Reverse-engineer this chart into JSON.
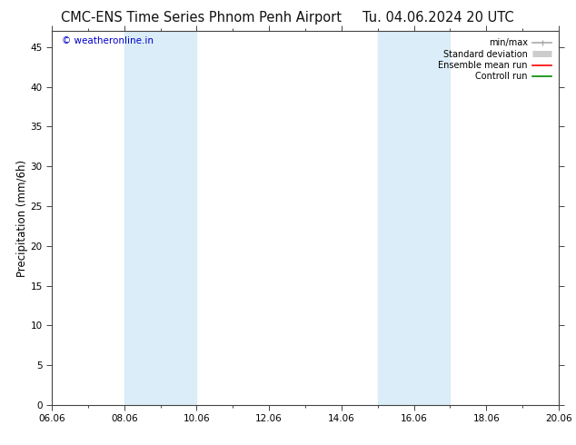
{
  "title_left": "CMC-ENS Time Series Phnom Penh Airport",
  "title_right": "Tu. 04.06.2024 20 UTC",
  "ylabel": "Precipitation (mm/6h)",
  "watermark": "© weatheronline.in",
  "ylim": [
    0,
    47
  ],
  "yticks": [
    0,
    5,
    10,
    15,
    20,
    25,
    30,
    35,
    40,
    45
  ],
  "xtick_labels": [
    "06.06",
    "08.06",
    "10.06",
    "12.06",
    "14.06",
    "16.06",
    "18.06",
    "20.06"
  ],
  "xtick_positions": [
    0,
    2,
    4,
    6,
    8,
    10,
    12,
    14
  ],
  "shade_bands": [
    {
      "xstart": 2,
      "xend": 4,
      "color": "#daedf8"
    },
    {
      "xstart": 9,
      "xend": 11,
      "color": "#daedf8"
    }
  ],
  "background_color": "#ffffff",
  "plot_bg_color": "#ffffff",
  "legend_items": [
    {
      "label": "min/max",
      "color": "#aaaaaa",
      "lw": 1.2
    },
    {
      "label": "Standard deviation",
      "color": "#cccccc",
      "lw": 5
    },
    {
      "label": "Ensemble mean run",
      "color": "#ff0000",
      "lw": 1.2
    },
    {
      "label": "Controll run",
      "color": "#008800",
      "lw": 1.2
    }
  ],
  "title_fontsize": 10.5,
  "tick_fontsize": 7.5,
  "ylabel_fontsize": 8.5,
  "watermark_color": "#0000cc",
  "watermark_fontsize": 7.5,
  "xmin": 0,
  "xmax": 14,
  "figwidth": 6.34,
  "figheight": 4.9,
  "dpi": 100
}
